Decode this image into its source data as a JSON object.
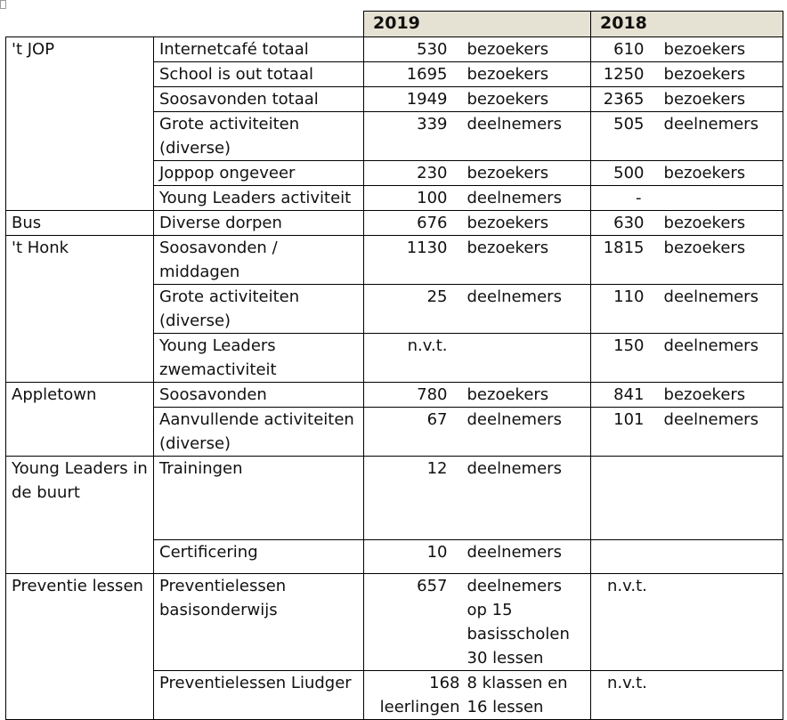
{
  "years": [
    "2019",
    "2018"
  ],
  "rows": [
    {
      "cat": "'t JOP",
      "act": "Internetcafé totaal",
      "v19": "530",
      "u19": "bezoekers",
      "v18": "610",
      "u18": "bezoekers"
    },
    {
      "act": "School is out totaal",
      "v19": "1695",
      "u19": "bezoekers",
      "v18": "1250",
      "u18": "bezoekers"
    },
    {
      "act": "Soosavonden totaal",
      "v19": "1949",
      "u19": "bezoekers",
      "v18": "2365",
      "u18": "bezoekers"
    },
    {
      "act": "Grote activiteiten (diverse)",
      "v19": "339",
      "u19": "deelnemers",
      "v18": "505",
      "u18": "deelnemers"
    },
    {
      "act": "Joppop ongeveer",
      "v19": "230",
      "u19": "bezoekers",
      "v18": "500",
      "u18": "bezoekers"
    },
    {
      "act": "Young Leaders activiteit",
      "v19": "100",
      "u19": "deelnemers",
      "v18": "-",
      "u18": ""
    },
    {
      "cat": "Bus",
      "act": "Diverse dorpen",
      "v19": "676",
      "u19": "bezoekers",
      "v18": "630",
      "u18": "bezoekers"
    },
    {
      "cat": "'t Honk",
      "act": "Soosavonden / middagen",
      "v19": "1130",
      "u19": "bezoekers",
      "v18": "1815",
      "u18": "bezoekers"
    },
    {
      "act": "Grote activiteiten (diverse)",
      "v19": "25",
      "u19": "deelnemers",
      "v18": "110",
      "u18": "deelnemers"
    },
    {
      "act": "Young Leaders zwemactiviteit",
      "v19": "n.v.t.",
      "u19": "",
      "v18": "150",
      "u18": "deelnemers"
    },
    {
      "cat": "Appletown",
      "act": "Soosavonden",
      "v19": "780",
      "u19": "bezoekers",
      "v18": "841",
      "u18": "bezoekers"
    },
    {
      "act": "Aanvullende activiteiten (diverse)",
      "v19": "67",
      "u19": "deelnemers",
      "v18": "101",
      "u18": "deelnemers"
    },
    {
      "cat": "Young Leaders in de buurt",
      "act": "Trainingen",
      "v19": "12",
      "u19": "deelnemers",
      "v18": "",
      "u18": ""
    },
    {
      "act": "Certificering",
      "v19": "10",
      "u19": "deelnemers",
      "v18": "",
      "u18": ""
    },
    {
      "cat": "Preventie lessen",
      "act": "Preventielessen basisonderwijs",
      "v19": "657",
      "u19": "deelnemers op 15 basisscholen 30 lessen",
      "v18": "n.v.t.",
      "u18": ""
    },
    {
      "act": "Preventielessen Liudger",
      "v19": "168 leerlingen",
      "u19": "8 klassen en 16 lessen",
      "v18": "n.v.t.",
      "u18": ""
    }
  ]
}
